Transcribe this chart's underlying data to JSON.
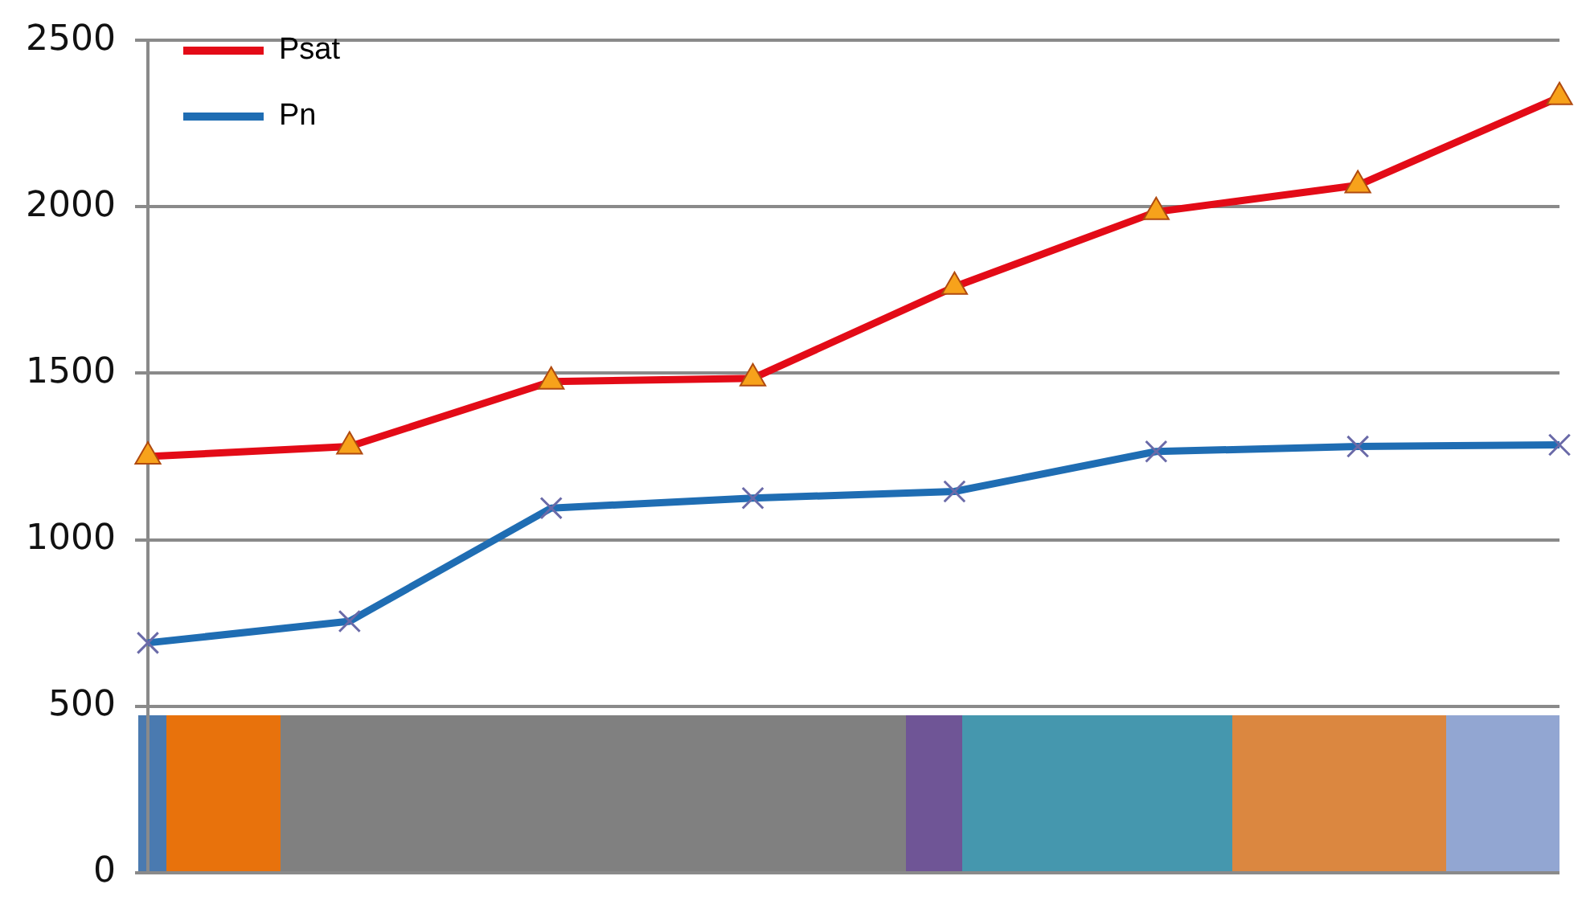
{
  "chart_data": {
    "type": "line",
    "categories": [
      null,
      null,
      null,
      null,
      null,
      null,
      null,
      null
    ],
    "ylim": [
      0,
      2500
    ],
    "yticks": [
      0,
      500,
      1000,
      1500,
      2000,
      2500
    ],
    "grid": "y",
    "legend": "top left",
    "tick_labels": "y",
    "series": [
      {
        "name": "Psat",
        "color": "#e30b17",
        "marker": "triangle",
        "values": [
          1250,
          1280,
          1475,
          1485,
          1760,
          1985,
          2065,
          2330
        ]
      },
      {
        "name": "Pn",
        "color": "#1f6db3",
        "marker": "cross",
        "values": [
          690,
          755,
          1095,
          1125,
          1145,
          1265,
          1280,
          1285
        ]
      }
    ]
  }
}
